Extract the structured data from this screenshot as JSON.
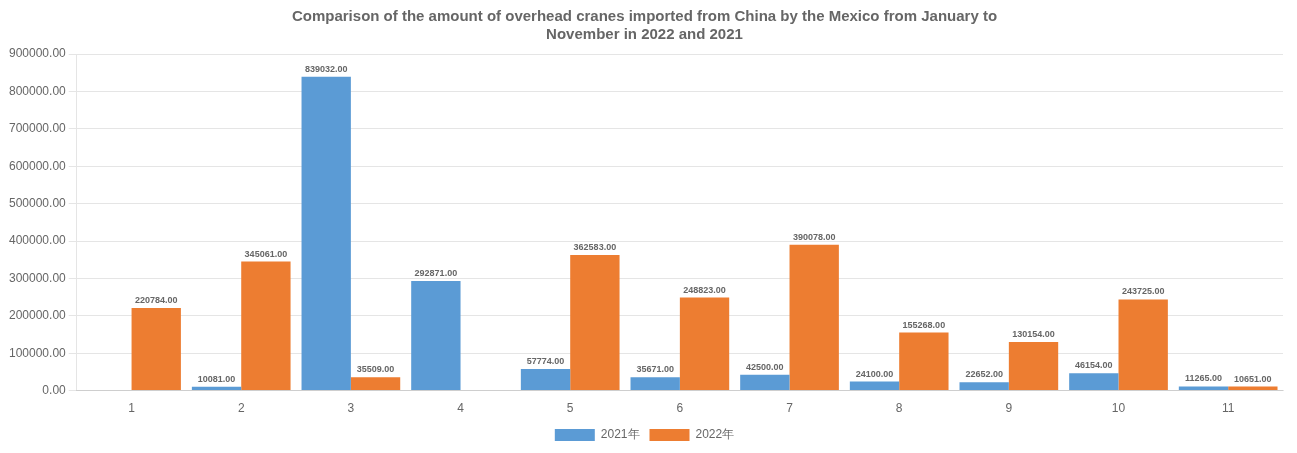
{
  "chart_data": {
    "type": "bar",
    "title": [
      "Comparison of the amount of overhead cranes imported from China by the Mexico from January to",
      "November in 2022 and 2021"
    ],
    "categories": [
      "1",
      "2",
      "3",
      "4",
      "5",
      "6",
      "7",
      "8",
      "9",
      "10",
      "11"
    ],
    "series": [
      {
        "name": "2021年",
        "color": "#5B9BD5",
        "values": [
          0,
          10081,
          839032,
          292871,
          57774,
          35671,
          42500,
          24100,
          22652,
          46154,
          11265
        ],
        "value_labels": [
          null,
          "10081.00",
          "839032.00",
          "292871.00",
          "57774.00",
          "35671.00",
          "42500.00",
          "24100.00",
          "22652.00",
          "46154.00",
          "11265.00"
        ]
      },
      {
        "name": "2022年",
        "color": "#ED7D31",
        "values": [
          220784,
          345061,
          35509,
          0,
          362583,
          248823,
          390078,
          155268,
          130154,
          243725,
          10651
        ],
        "value_labels": [
          "220784.00",
          "345061.00",
          "35509.00",
          null,
          "362583.00",
          "248823.00",
          "390078.00",
          "155268.00",
          "130154.00",
          "243725.00",
          "10651.00"
        ]
      }
    ],
    "ylim": [
      0,
      900000
    ],
    "yticks": [
      {
        "value": 0,
        "label": "0.00"
      },
      {
        "value": 100000,
        "label": "100000.00"
      },
      {
        "value": 200000,
        "label": "200000.00"
      },
      {
        "value": 300000,
        "label": "300000.00"
      },
      {
        "value": 400000,
        "label": "400000.00"
      },
      {
        "value": 500000,
        "label": "500000.00"
      },
      {
        "value": 600000,
        "label": "600000.00"
      },
      {
        "value": 700000,
        "label": "700000.00"
      },
      {
        "value": 800000,
        "label": "800000.00"
      },
      {
        "value": 900000,
        "label": "900000.00"
      }
    ],
    "grid": true,
    "legend": "bottom",
    "data_labels": true
  }
}
